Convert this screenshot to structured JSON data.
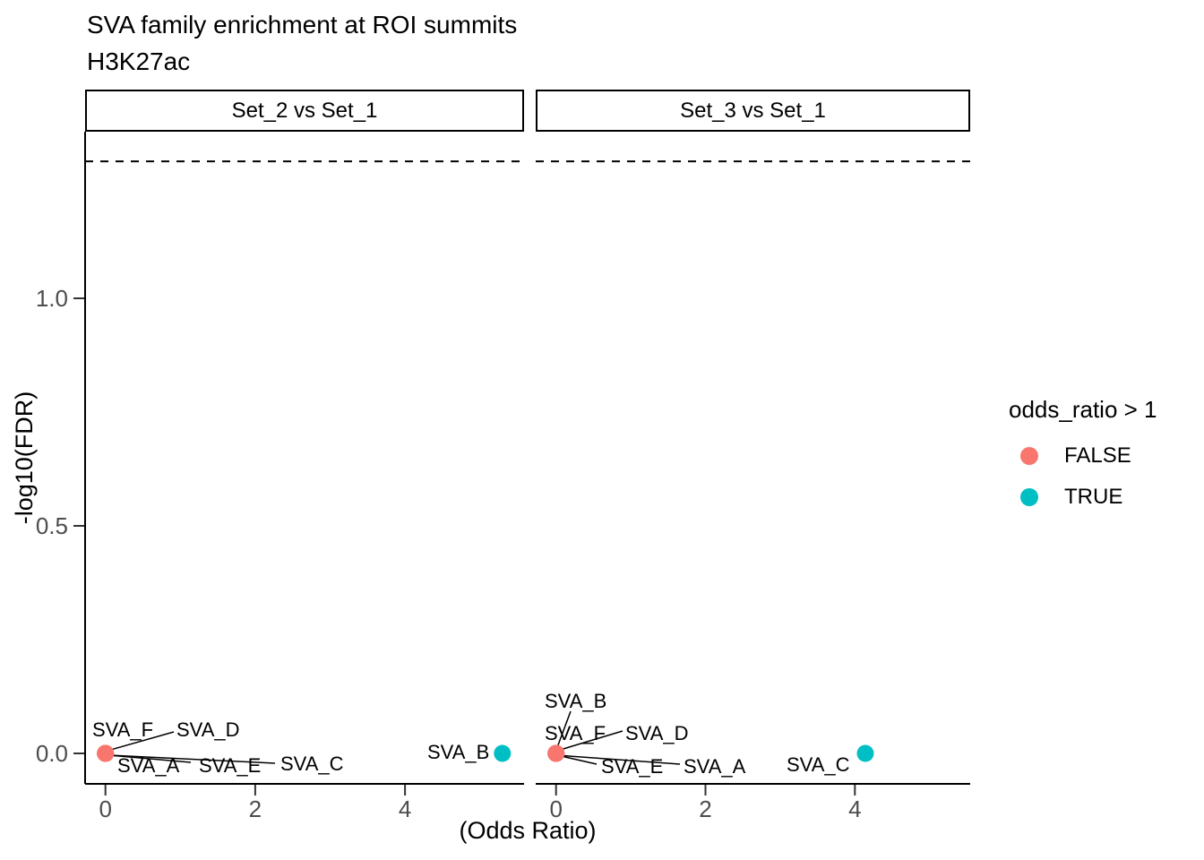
{
  "chart_data": {
    "type": "scatter",
    "title": "SVA family enrichment at ROI summits",
    "subtitle": "H3K27ac",
    "xlabel": "(Odds Ratio)",
    "ylabel": "-log10(FDR)",
    "x_ticks": [
      0,
      2,
      4
    ],
    "y_ticks": [
      0.0,
      0.5,
      1.0
    ],
    "xlim": [
      -0.3,
      5.6
    ],
    "ylim": [
      -0.07,
      1.37
    ],
    "grid": "off",
    "threshold_line": {
      "y": 1.301,
      "style": "dashed",
      "color": "#000000"
    },
    "legend": {
      "title": "odds_ratio > 1",
      "position": "right",
      "items": [
        {
          "label": "FALSE",
          "color": "#F8766D"
        },
        {
          "label": "TRUE",
          "color": "#00BFC4"
        }
      ]
    },
    "facets": [
      {
        "label": "Set_2 vs Set_1",
        "points": [
          {
            "name": "SVA_A",
            "x": 0,
            "y": 0,
            "odds_ratio_gt_1": false
          },
          {
            "name": "SVA_B",
            "x": 5.3,
            "y": 0,
            "odds_ratio_gt_1": true
          },
          {
            "name": "SVA_C",
            "x": 0,
            "y": 0,
            "odds_ratio_gt_1": false
          },
          {
            "name": "SVA_D",
            "x": 0,
            "y": 0,
            "odds_ratio_gt_1": false
          },
          {
            "name": "SVA_E",
            "x": 0,
            "y": 0,
            "odds_ratio_gt_1": false
          },
          {
            "name": "SVA_F",
            "x": 0,
            "y": 0,
            "odds_ratio_gt_1": false
          }
        ]
      },
      {
        "label": "Set_3 vs Set_1",
        "points": [
          {
            "name": "SVA_A",
            "x": 0,
            "y": 0,
            "odds_ratio_gt_1": false
          },
          {
            "name": "SVA_B",
            "x": 0,
            "y": 0,
            "odds_ratio_gt_1": false
          },
          {
            "name": "SVA_C",
            "x": 4.14,
            "y": 0,
            "odds_ratio_gt_1": true
          },
          {
            "name": "SVA_D",
            "x": 0,
            "y": 0,
            "odds_ratio_gt_1": false
          },
          {
            "name": "SVA_E",
            "x": 0,
            "y": 0,
            "odds_ratio_gt_1": false
          },
          {
            "name": "SVA_F",
            "x": 0,
            "y": 0,
            "odds_ratio_gt_1": false
          }
        ]
      }
    ]
  }
}
